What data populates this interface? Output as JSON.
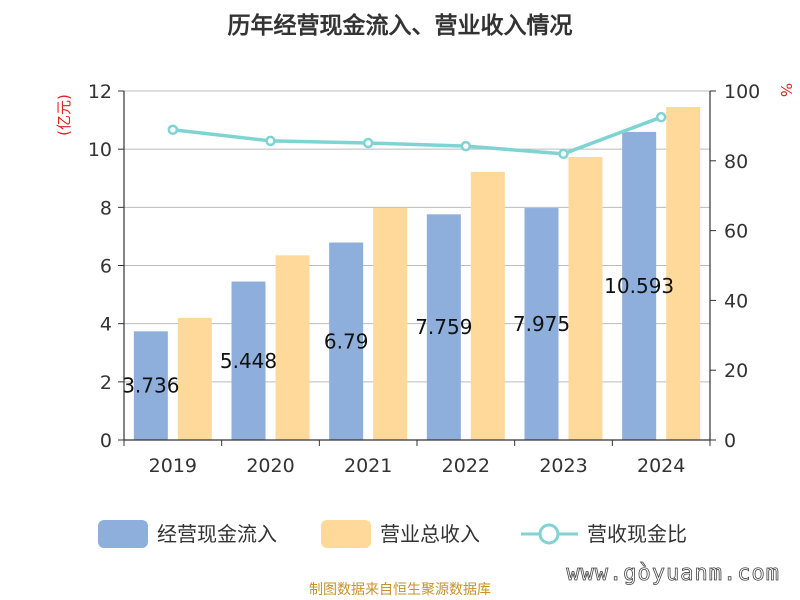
{
  "chart_data": {
    "type": "bar",
    "title": "历年经营现金流入、营业收入情况",
    "categories": [
      "2019",
      "2020",
      "2021",
      "2022",
      "2023",
      "2024"
    ],
    "series": [
      {
        "name": "经营现金流入",
        "type": "bar",
        "axis": "left",
        "color": "#8eaedb",
        "values": [
          3.736,
          5.448,
          6.79,
          7.759,
          7.975,
          10.593
        ],
        "labels": [
          "3.736",
          "5.448",
          "6.79",
          "7.759",
          "7.975",
          "10.593"
        ]
      },
      {
        "name": "营业总收入",
        "type": "bar",
        "axis": "left",
        "color": "#ffd999",
        "values": [
          4.2,
          6.35,
          7.98,
          9.22,
          9.73,
          11.45
        ]
      },
      {
        "name": "营收现金比",
        "type": "line",
        "axis": "right",
        "color": "#7fd3d3",
        "values": [
          88.9,
          85.7,
          85.1,
          84.2,
          82.0,
          92.5
        ]
      }
    ],
    "left_axis": {
      "label": "(亿元)",
      "ylim": [
        0,
        12
      ],
      "ticks": [
        "0",
        "2",
        "4",
        "6",
        "8",
        "10",
        "12"
      ]
    },
    "right_axis": {
      "label": "%",
      "ylim": [
        0,
        100
      ],
      "ticks": [
        "0",
        "20",
        "40",
        "60",
        "80",
        "100"
      ]
    },
    "grid": true,
    "legend": "bottom"
  },
  "footer": {
    "source": "制图数据来自恒生聚源数据库",
    "watermark": "www.gòyuanm.com"
  },
  "colors": {
    "axis_label_red": "#e02020",
    "grid": "#bbbbbb"
  }
}
